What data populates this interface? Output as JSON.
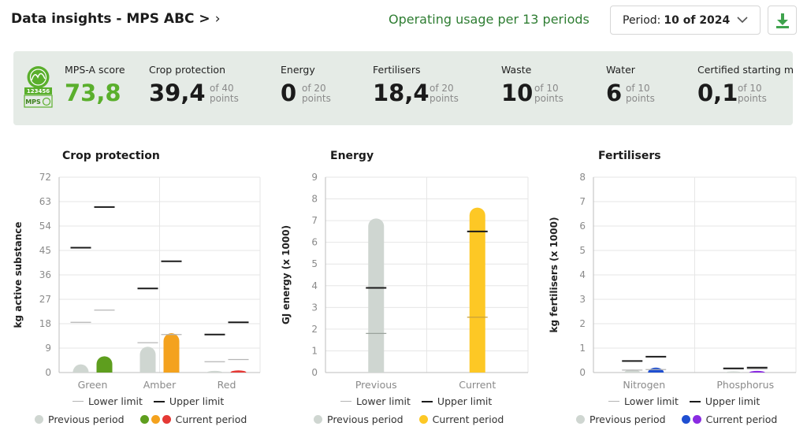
{
  "header": {
    "title": "Data insights - MPS ABC >",
    "subtitle": "Operating usage per 13 periods",
    "period_label": "Period:",
    "period_value": "10 of 2024"
  },
  "score_panel": {
    "badge_number": "123456",
    "badge_text": "MPS",
    "items": [
      {
        "label": "MPS-A score",
        "value": "73,8",
        "of": "",
        "unit": ""
      },
      {
        "label": "Crop protection",
        "value": "39,4",
        "of": "of 40",
        "unit": "points"
      },
      {
        "label": "Energy",
        "value": "0",
        "of": "of 20",
        "unit": "points"
      },
      {
        "label": "Fertilisers",
        "value": "18,4",
        "of": "of 20",
        "unit": "points"
      },
      {
        "label": "Waste",
        "value": "10",
        "of": "of 10",
        "unit": "points"
      },
      {
        "label": "Water",
        "value": "6",
        "of": "of 10",
        "unit": "points"
      },
      {
        "label": "Certified starting mo",
        "value": "0,1",
        "of": "of 10",
        "unit": "points"
      }
    ]
  },
  "legend": {
    "lower_limit": "Lower limit",
    "upper_limit": "Upper limit",
    "previous_period": "Previous period",
    "current_period": "Current period"
  },
  "colors": {
    "previous": "#cfd6d1",
    "green": "#5e9e1e",
    "amber": "#f4a21e",
    "red": "#e53935",
    "yellow": "#fdc825",
    "blue": "#1f4fd1",
    "purple": "#8a2be2",
    "upper": "#1b1b1b",
    "lower": "#b5b5b5",
    "subtitle": "#2e7d32"
  },
  "chart_data": [
    {
      "type": "bar",
      "title": "Crop protection",
      "ylabel": "kg active substance",
      "ylim": [
        0,
        72
      ],
      "yticks": [
        0,
        9,
        18,
        27,
        36,
        45,
        54,
        63,
        72
      ],
      "categories": [
        "Green",
        "Amber",
        "Red"
      ],
      "previous": [
        3,
        9.5,
        0.6
      ],
      "current": [
        6,
        14.5,
        0.8
      ],
      "current_colors": [
        "#5e9e1e",
        "#f4a21e",
        "#e53935"
      ],
      "lower_limit_previous": [
        18.5,
        11,
        4
      ],
      "lower_limit_current": [
        23,
        14,
        4.8
      ],
      "upper_limit_previous": [
        46,
        31,
        14
      ],
      "upper_limit_current": [
        61,
        41,
        18.5
      ]
    },
    {
      "type": "bar",
      "title": "Energy",
      "ylabel": "GJ energy (x 1000)",
      "ylim": [
        0,
        9
      ],
      "yticks": [
        0,
        1,
        2,
        3,
        4,
        5,
        6,
        7,
        8,
        9
      ],
      "categories": [
        "Previous",
        "Current"
      ],
      "values": [
        7.1,
        7.6
      ],
      "colors": [
        "#cfd6d1",
        "#fdc825"
      ],
      "lower_limit": [
        1.8,
        2.55
      ],
      "upper_limit": [
        3.9,
        6.5
      ]
    },
    {
      "type": "bar",
      "title": "Fertilisers",
      "ylabel": "kg fertilisers (x 1000)",
      "ylim": [
        0,
        8
      ],
      "yticks": [
        0,
        1,
        2,
        3,
        4,
        5,
        6,
        7,
        8
      ],
      "categories": [
        "Nitrogen",
        "Phosphorus"
      ],
      "previous": [
        0.12,
        0.05
      ],
      "current": [
        0.2,
        0.07
      ],
      "current_colors": [
        "#1f4fd1",
        "#8a2be2"
      ],
      "lower_limit_previous": [
        0.1,
        0.15
      ],
      "lower_limit_current": [
        0.12,
        0.15
      ],
      "upper_limit_previous": [
        0.47,
        0.17
      ],
      "upper_limit_current": [
        0.65,
        0.2
      ]
    }
  ]
}
